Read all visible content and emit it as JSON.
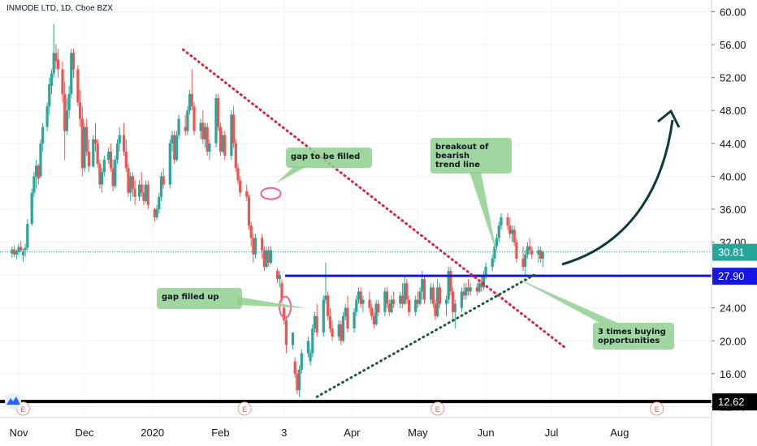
{
  "header": {
    "symbol": "INMODE LTD, 1D, Cboe BZX"
  },
  "colors": {
    "up": "#26a69a",
    "down": "#ef5350",
    "support": "#1515e6",
    "floor": "#000000",
    "trend": "#e0203a",
    "rising": "#1e5a32",
    "note_bg": "#8fcf8f",
    "arrow": "#0d3a3a"
  },
  "chart_data": {
    "type": "candlestick",
    "y_axis": {
      "min": 11,
      "max": 61.5,
      "ticks": [
        "60.00",
        "56.00",
        "52.00",
        "48.00",
        "44.00",
        "40.00",
        "36.00",
        "32.00",
        "28.00",
        "24.00",
        "20.00",
        "16.00",
        "12.00"
      ],
      "tick_values": [
        60,
        56,
        52,
        48,
        44,
        40,
        36,
        32,
        28,
        24,
        20,
        16,
        12
      ]
    },
    "x_axis": {
      "labels": [
        "Nov",
        "Dec",
        "2020",
        "Feb",
        "3",
        "Apr",
        "May",
        "Jun",
        "Jul",
        "Aug"
      ],
      "label_days": [
        0,
        30,
        61,
        92,
        121,
        152,
        182,
        213,
        243,
        274
      ],
      "range": [
        -3,
        282
      ]
    },
    "price_levels": [
      {
        "name": "current",
        "label": "30.81",
        "value": 30.81,
        "color": "#26a69a"
      },
      {
        "name": "support",
        "label": "27.90",
        "value": 27.9,
        "color": "#1515e6"
      },
      {
        "name": "floor",
        "label": "12.62",
        "value": 12.62,
        "color": "#000000"
      }
    ],
    "earnings_markers": {
      "label": "E",
      "days": [
        2,
        103,
        191,
        291
      ]
    },
    "annotations": [
      {
        "name": "note-gap-to-be-filled",
        "text": [
          "gap to be filled"
        ]
      },
      {
        "name": "note-gap-filled-up",
        "text": [
          "gap filled up"
        ]
      },
      {
        "name": "note-breakout",
        "text": [
          "breakout of",
          "bearish",
          "trend line"
        ]
      },
      {
        "name": "note-buying",
        "text": [
          "3 times buying",
          "opportunities"
        ]
      }
    ],
    "trend_lines": [
      {
        "name": "bearish-trend-line",
        "style": "dotted",
        "from": [
          75,
          55.4
        ],
        "to": [
          250,
          19
        ]
      },
      {
        "name": "rising-support-line",
        "style": "dotted",
        "from": [
          136,
          13.2
        ],
        "to": [
          235,
          28
        ]
      }
    ],
    "candles": [
      [
        -3,
        30.6,
        31.5,
        30.1,
        31.1
      ],
      [
        -2,
        31.1,
        31.6,
        30.2,
        30.5
      ],
      [
        -1,
        30.5,
        31.1,
        29.9,
        30.9
      ],
      [
        0,
        30.8,
        31.8,
        30.4,
        31.4
      ],
      [
        1,
        31.4,
        32.1,
        30.8,
        31.0
      ],
      [
        2,
        30.4,
        31.2,
        29.6,
        30.9
      ],
      [
        3,
        31.0,
        31.8,
        30.2,
        31.3
      ],
      [
        4,
        31.3,
        34.8,
        31.0,
        34.2
      ],
      [
        6,
        34.2,
        38.5,
        34.0,
        38.0
      ],
      [
        7,
        38.0,
        40.5,
        37.5,
        40.0
      ],
      [
        8,
        40.0,
        42.0,
        38.5,
        41.3
      ],
      [
        9,
        41.3,
        41.5,
        39.0,
        39.7
      ],
      [
        10,
        40.0,
        44.5,
        39.8,
        44.0
      ],
      [
        11,
        44.0,
        46.5,
        43.0,
        46.0
      ],
      [
        13,
        46.0,
        49.0,
        45.5,
        48.5
      ],
      [
        14,
        48.5,
        52.0,
        47.5,
        51.2
      ],
      [
        15,
        51.0,
        53.0,
        50.0,
        52.5
      ],
      [
        16,
        52.5,
        58.5,
        52.0,
        55.0
      ],
      [
        17,
        55.0,
        56.0,
        53.0,
        54.0
      ],
      [
        18,
        54.2,
        55.5,
        52.0,
        53.0
      ],
      [
        20,
        53.0,
        54.0,
        49.0,
        50.0
      ],
      [
        21,
        50.0,
        51.5,
        42.0,
        45.5
      ],
      [
        22,
        45.5,
        49.5,
        45.0,
        48.0
      ],
      [
        23,
        48.0,
        51.0,
        47.0,
        50.0
      ],
      [
        24,
        50.0,
        55.5,
        49.5,
        55.0
      ],
      [
        25,
        55.0,
        55.5,
        52.0,
        53.0
      ],
      [
        27,
        53.0,
        53.5,
        48.5,
        49.0
      ],
      [
        28,
        49.0,
        50.5,
        46.0,
        47.0
      ],
      [
        29,
        47.0,
        48.5,
        40.0,
        41.0
      ],
      [
        30,
        41.0,
        46.5,
        40.5,
        46.0
      ],
      [
        31,
        46.0,
        47.0,
        42.5,
        43.0
      ],
      [
        32,
        43.0,
        44.5,
        40.5,
        41.2
      ],
      [
        34,
        41.2,
        45.0,
        41.0,
        44.5
      ],
      [
        35,
        44.5,
        46.5,
        43.0,
        44.0
      ],
      [
        36,
        44.0,
        44.5,
        41.0,
        41.5
      ],
      [
        37,
        41.5,
        42.0,
        38.5,
        39.0
      ],
      [
        38,
        39.0,
        41.0,
        38.0,
        40.5
      ],
      [
        39,
        40.5,
        42.5,
        40.0,
        42.0
      ],
      [
        41,
        42.0,
        43.5,
        41.5,
        43.0
      ],
      [
        42,
        43.0,
        44.0,
        40.5,
        41.0
      ],
      [
        43,
        41.0,
        42.0,
        38.2,
        38.8
      ],
      [
        44,
        38.8,
        42.5,
        38.5,
        42.0
      ],
      [
        45,
        42.0,
        44.5,
        41.5,
        44.0
      ],
      [
        46,
        44.0,
        46.0,
        43.0,
        45.0
      ],
      [
        48,
        45.0,
        46.5,
        42.5,
        43.0
      ],
      [
        49,
        43.0,
        44.5,
        40.5,
        41.0
      ],
      [
        50,
        41.0,
        41.5,
        37.5,
        38.0
      ],
      [
        51,
        38.0,
        40.5,
        37.0,
        40.0
      ],
      [
        52,
        40.0,
        40.5,
        37.5,
        38.5
      ],
      [
        53,
        38.5,
        39.5,
        36.5,
        37.5
      ],
      [
        55,
        37.5,
        39.5,
        37.0,
        39.0
      ],
      [
        56,
        39.0,
        40.5,
        37.5,
        38.0
      ],
      [
        57,
        38.0,
        39.0,
        36.5,
        37.0
      ],
      [
        58,
        37.0,
        39.5,
        36.8,
        39.0
      ],
      [
        59,
        39.0,
        39.5,
        36.0,
        36.5
      ],
      [
        62,
        36.0,
        36.2,
        34.5,
        35.0
      ],
      [
        63,
        35.0,
        36.5,
        34.7,
        36.0
      ],
      [
        64,
        36.0,
        38.0,
        35.5,
        37.5
      ],
      [
        65,
        37.5,
        40.5,
        37.0,
        40.0
      ],
      [
        66,
        40.0,
        41.0,
        38.5,
        39.0
      ],
      [
        69,
        39.0,
        44.5,
        38.5,
        44.0
      ],
      [
        70,
        44.0,
        45.5,
        43.0,
        45.0
      ],
      [
        71,
        45.0,
        45.5,
        41.5,
        42.0
      ],
      [
        72,
        42.0,
        45.5,
        41.8,
        45.0
      ],
      [
        73,
        45.0,
        47.5,
        44.5,
        47.0
      ],
      [
        76,
        46.0,
        47.5,
        45.0,
        45.5
      ],
      [
        77,
        45.5,
        48.5,
        45.0,
        48.0
      ],
      [
        78,
        48.0,
        50.5,
        47.5,
        50.0
      ],
      [
        79,
        50.0,
        53.0,
        48.0,
        48.5
      ],
      [
        80,
        48.5,
        49.0,
        45.0,
        45.5
      ],
      [
        83,
        45.5,
        47.0,
        44.5,
        46.5
      ],
      [
        84,
        46.5,
        48.0,
        44.0,
        44.5
      ],
      [
        85,
        44.5,
        46.5,
        43.5,
        46.0
      ],
      [
        86,
        46.0,
        46.5,
        42.5,
        43.0
      ],
      [
        87,
        43.0,
        44.5,
        42.0,
        44.0
      ],
      [
        90,
        44.0,
        50.0,
        43.5,
        49.5
      ],
      [
        91,
        49.5,
        50.0,
        45.5,
        46.0
      ],
      [
        92,
        46.0,
        46.5,
        42.5,
        43.0
      ],
      [
        93,
        43.0,
        45.5,
        42.8,
        45.0
      ],
      [
        94,
        45.0,
        45.5,
        42.0,
        42.5
      ],
      [
        97,
        42.5,
        48.0,
        42.0,
        47.5
      ],
      [
        98,
        47.5,
        48.5,
        43.5,
        44.0
      ],
      [
        99,
        44.0,
        44.5,
        40.5,
        41.0
      ],
      [
        100,
        41.0,
        41.5,
        39.0,
        39.5
      ],
      [
        101,
        39.5,
        40.0,
        37.5,
        38.0
      ],
      [
        104,
        38.2,
        39.0,
        37.0,
        37.5
      ],
      [
        105,
        37.5,
        37.8,
        33.5,
        34.0
      ],
      [
        106,
        34.0,
        34.5,
        31.5,
        32.5
      ],
      [
        107,
        32.5,
        33.0,
        29.5,
        30.5
      ],
      [
        108,
        30.5,
        33.0,
        30.0,
        32.5
      ],
      [
        111,
        32.5,
        33.0,
        30.0,
        31.0
      ],
      [
        112,
        31.0,
        31.5,
        28.5,
        29.0
      ],
      [
        113,
        29.0,
        31.5,
        28.8,
        31.0
      ],
      [
        114,
        31.0,
        31.5,
        29.0,
        29.5
      ],
      [
        115,
        29.5,
        31.5,
        29.3,
        31.0
      ],
      [
        118,
        28.5,
        28.8,
        27.0,
        27.5
      ],
      [
        119,
        27.5,
        28.5,
        26.5,
        28.0
      ],
      [
        120,
        27.0,
        27.5,
        24.5,
        25.0
      ],
      [
        121,
        24.0,
        24.5,
        22.0,
        22.5
      ],
      [
        122,
        22.5,
        23.0,
        18.5,
        19.5
      ],
      [
        125,
        19.5,
        21.0,
        19.0,
        21.0
      ],
      [
        126,
        17.5,
        18.0,
        15.5,
        16.0
      ],
      [
        127,
        16.0,
        16.5,
        13.5,
        14.0
      ],
      [
        128,
        14.0,
        17.0,
        13.2,
        16.5
      ],
      [
        129,
        16.5,
        19.0,
        16.0,
        18.5
      ],
      [
        132,
        18.5,
        20.5,
        18.0,
        20.0
      ],
      [
        133,
        17.5,
        19.0,
        17.0,
        18.5
      ],
      [
        134,
        18.5,
        22.0,
        18.0,
        21.5
      ],
      [
        135,
        21.5,
        23.5,
        21.0,
        23.0
      ],
      [
        136,
        23.0,
        24.5,
        20.5,
        21.0
      ],
      [
        139,
        21.0,
        25.5,
        20.5,
        25.0
      ],
      [
        140,
        25.0,
        29.5,
        24.5,
        25.5
      ],
      [
        141,
        25.5,
        26.0,
        22.5,
        23.0
      ],
      [
        142,
        23.0,
        24.0,
        21.0,
        21.5
      ],
      [
        143,
        21.5,
        22.5,
        20.0,
        20.5
      ],
      [
        146,
        20.5,
        22.5,
        20.0,
        22.0
      ],
      [
        147,
        22.0,
        22.5,
        19.5,
        20.0
      ],
      [
        148,
        20.0,
        23.5,
        19.8,
        23.0
      ],
      [
        149,
        23.0,
        24.5,
        22.5,
        24.0
      ],
      [
        150,
        24.0,
        25.5,
        21.0,
        21.5
      ],
      [
        153,
        21.5,
        24.0,
        21.0,
        23.5
      ],
      [
        154,
        23.5,
        25.5,
        23.0,
        25.0
      ],
      [
        155,
        25.0,
        26.5,
        24.5,
        26.0
      ],
      [
        156,
        26.0,
        26.5,
        24.0,
        24.5
      ],
      [
        157,
        24.5,
        25.5,
        23.5,
        25.0
      ],
      [
        160,
        25.0,
        26.0,
        23.5,
        24.0
      ],
      [
        161,
        24.0,
        24.5,
        22.5,
        23.0
      ],
      [
        162,
        23.0,
        23.5,
        21.5,
        22.0
      ],
      [
        163,
        22.0,
        25.0,
        21.8,
        24.5
      ],
      [
        164,
        24.5,
        25.0,
        23.0,
        23.5
      ],
      [
        167,
        23.5,
        26.5,
        23.0,
        26.0
      ],
      [
        168,
        26.0,
        26.5,
        24.0,
        24.5
      ],
      [
        169,
        24.5,
        25.0,
        23.0,
        23.5
      ],
      [
        170,
        23.5,
        25.5,
        23.3,
        25.0
      ],
      [
        171,
        25.0,
        26.0,
        24.0,
        24.5
      ],
      [
        174,
        24.5,
        26.0,
        24.0,
        25.5
      ],
      [
        175,
        25.5,
        27.0,
        24.0,
        24.5
      ],
      [
        176,
        24.5,
        28.0,
        24.3,
        27.0
      ],
      [
        177,
        27.0,
        27.5,
        24.5,
        25.0
      ],
      [
        178,
        25.0,
        25.5,
        23.0,
        23.5
      ],
      [
        181,
        23.5,
        25.5,
        23.0,
        25.0
      ],
      [
        182,
        25.0,
        26.0,
        24.0,
        24.5
      ],
      [
        183,
        24.5,
        26.5,
        24.3,
        26.0
      ],
      [
        184,
        26.0,
        28.5,
        25.0,
        27.5
      ],
      [
        185,
        27.5,
        28.0,
        24.5,
        25.0
      ],
      [
        188,
        25.0,
        27.0,
        24.5,
        26.5
      ],
      [
        189,
        26.5,
        27.0,
        24.0,
        24.5
      ],
      [
        190,
        24.5,
        25.0,
        22.5,
        23.0
      ],
      [
        191,
        23.0,
        27.5,
        22.8,
        26.5
      ],
      [
        192,
        26.5,
        27.0,
        24.0,
        24.5
      ],
      [
        195,
        24.5,
        25.5,
        23.0,
        25.0
      ],
      [
        196,
        25.0,
        29.0,
        24.5,
        28.5
      ],
      [
        197,
        28.5,
        29.0,
        25.5,
        26.0
      ],
      [
        198,
        26.0,
        26.5,
        22.5,
        23.5
      ],
      [
        199,
        23.5,
        25.0,
        21.5,
        24.5
      ],
      [
        202,
        24.0,
        26.5,
        23.5,
        26.0
      ],
      [
        203,
        26.0,
        27.0,
        25.0,
        25.5
      ],
      [
        204,
        25.5,
        27.0,
        25.0,
        26.5
      ],
      [
        205,
        26.5,
        27.5,
        25.5,
        26.0
      ],
      [
        206,
        26.0,
        27.0,
        25.5,
        26.5
      ],
      [
        209,
        26.5,
        27.0,
        25.5,
        26.0
      ],
      [
        210,
        26.0,
        27.5,
        25.8,
        27.0
      ],
      [
        211,
        27.0,
        28.0,
        26.0,
        26.5
      ],
      [
        212,
        26.5,
        28.5,
        26.2,
        28.0
      ],
      [
        213,
        28.0,
        29.5,
        27.5,
        29.0
      ],
      [
        216,
        29.0,
        30.5,
        28.5,
        30.0
      ],
      [
        217,
        30.0,
        32.0,
        29.5,
        31.5
      ],
      [
        218,
        31.5,
        33.0,
        31.0,
        32.5
      ],
      [
        219,
        32.5,
        34.5,
        32.0,
        34.0
      ],
      [
        220,
        34.0,
        35.5,
        33.5,
        35.0
      ],
      [
        223,
        35.0,
        35.5,
        33.5,
        34.0
      ],
      [
        224,
        34.0,
        35.0,
        32.5,
        33.0
      ],
      [
        225,
        33.0,
        34.0,
        32.0,
        33.5
      ],
      [
        226,
        33.5,
        34.0,
        31.5,
        32.0
      ],
      [
        227,
        32.0,
        32.5,
        29.5,
        30.0
      ],
      [
        230,
        30.0,
        31.5,
        28.5,
        29.0
      ],
      [
        231,
        29.0,
        31.0,
        28.0,
        30.5
      ],
      [
        232,
        30.5,
        32.0,
        30.0,
        31.5
      ],
      [
        233,
        31.5,
        32.5,
        30.5,
        31.0
      ],
      [
        234,
        31.0,
        31.5,
        30.0,
        30.5
      ],
      [
        237,
        30.5,
        31.5,
        29.5,
        31.0
      ],
      [
        238,
        31.0,
        31.5,
        29.5,
        30.0
      ],
      [
        239,
        30.0,
        31.0,
        29.0,
        30.8
      ]
    ]
  }
}
